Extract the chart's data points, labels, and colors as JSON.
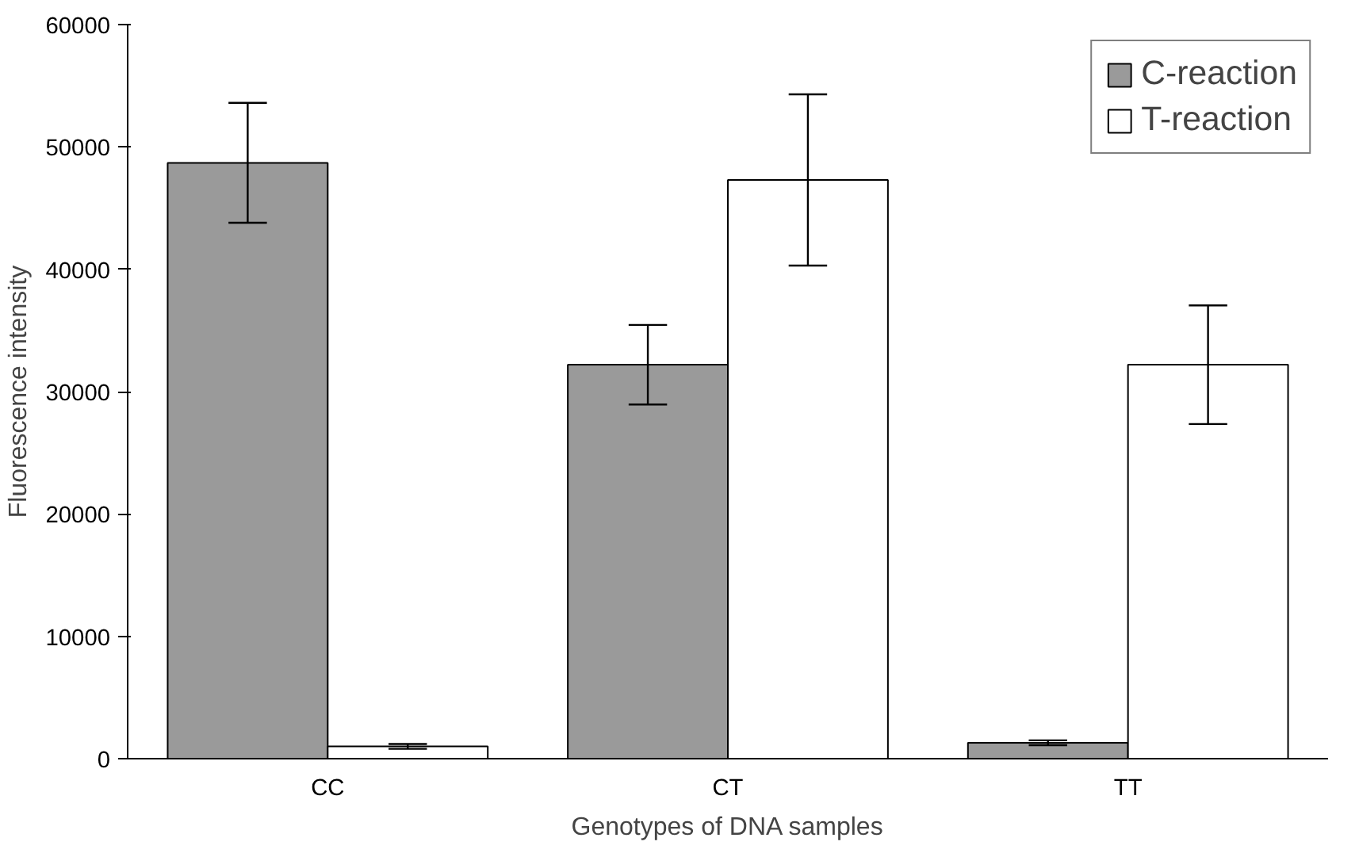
{
  "chart_data": {
    "type": "bar",
    "xlabel": "Genotypes of DNA samples",
    "ylabel": "Fluorescence intensity",
    "categories": [
      "CC",
      "CT",
      "TT"
    ],
    "series": [
      {
        "name": "C-reaction",
        "color": "#9a9a9a",
        "values": [
          48700,
          32200,
          1300
        ],
        "errors": [
          4900,
          3250,
          200
        ]
      },
      {
        "name": "T-reaction",
        "color": "#ffffff",
        "values": [
          1000,
          47300,
          32200
        ],
        "errors": [
          200,
          7000,
          4850
        ]
      }
    ],
    "ylim": [
      0,
      60000
    ],
    "yticks": [
      0,
      10000,
      20000,
      30000,
      40000,
      50000,
      60000
    ],
    "grid": false,
    "legend": "top right"
  }
}
